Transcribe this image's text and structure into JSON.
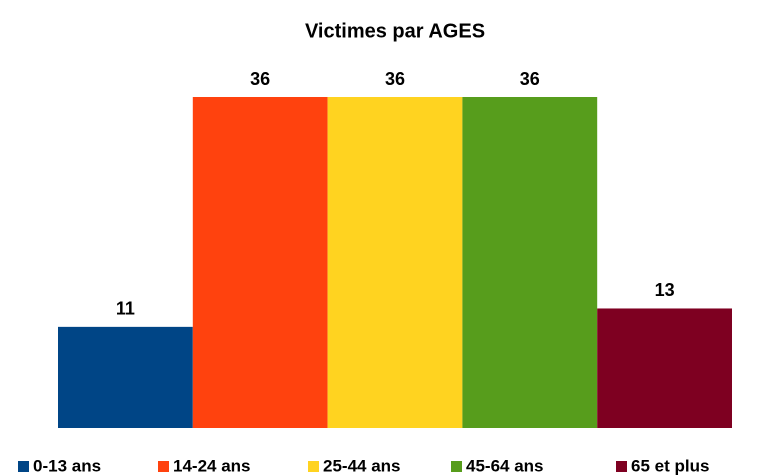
{
  "chart_data": {
    "type": "bar",
    "title": "Victimes par AGES",
    "categories": [
      "0-13 ans",
      "14-24 ans",
      "25-44 ans",
      "45-64 ans",
      "65 et plus"
    ],
    "values": [
      11,
      36,
      36,
      36,
      13
    ],
    "colors": [
      "#004586",
      "#ff420e",
      "#ffd320",
      "#579d1c",
      "#7e0021"
    ],
    "legend": "bottom"
  }
}
